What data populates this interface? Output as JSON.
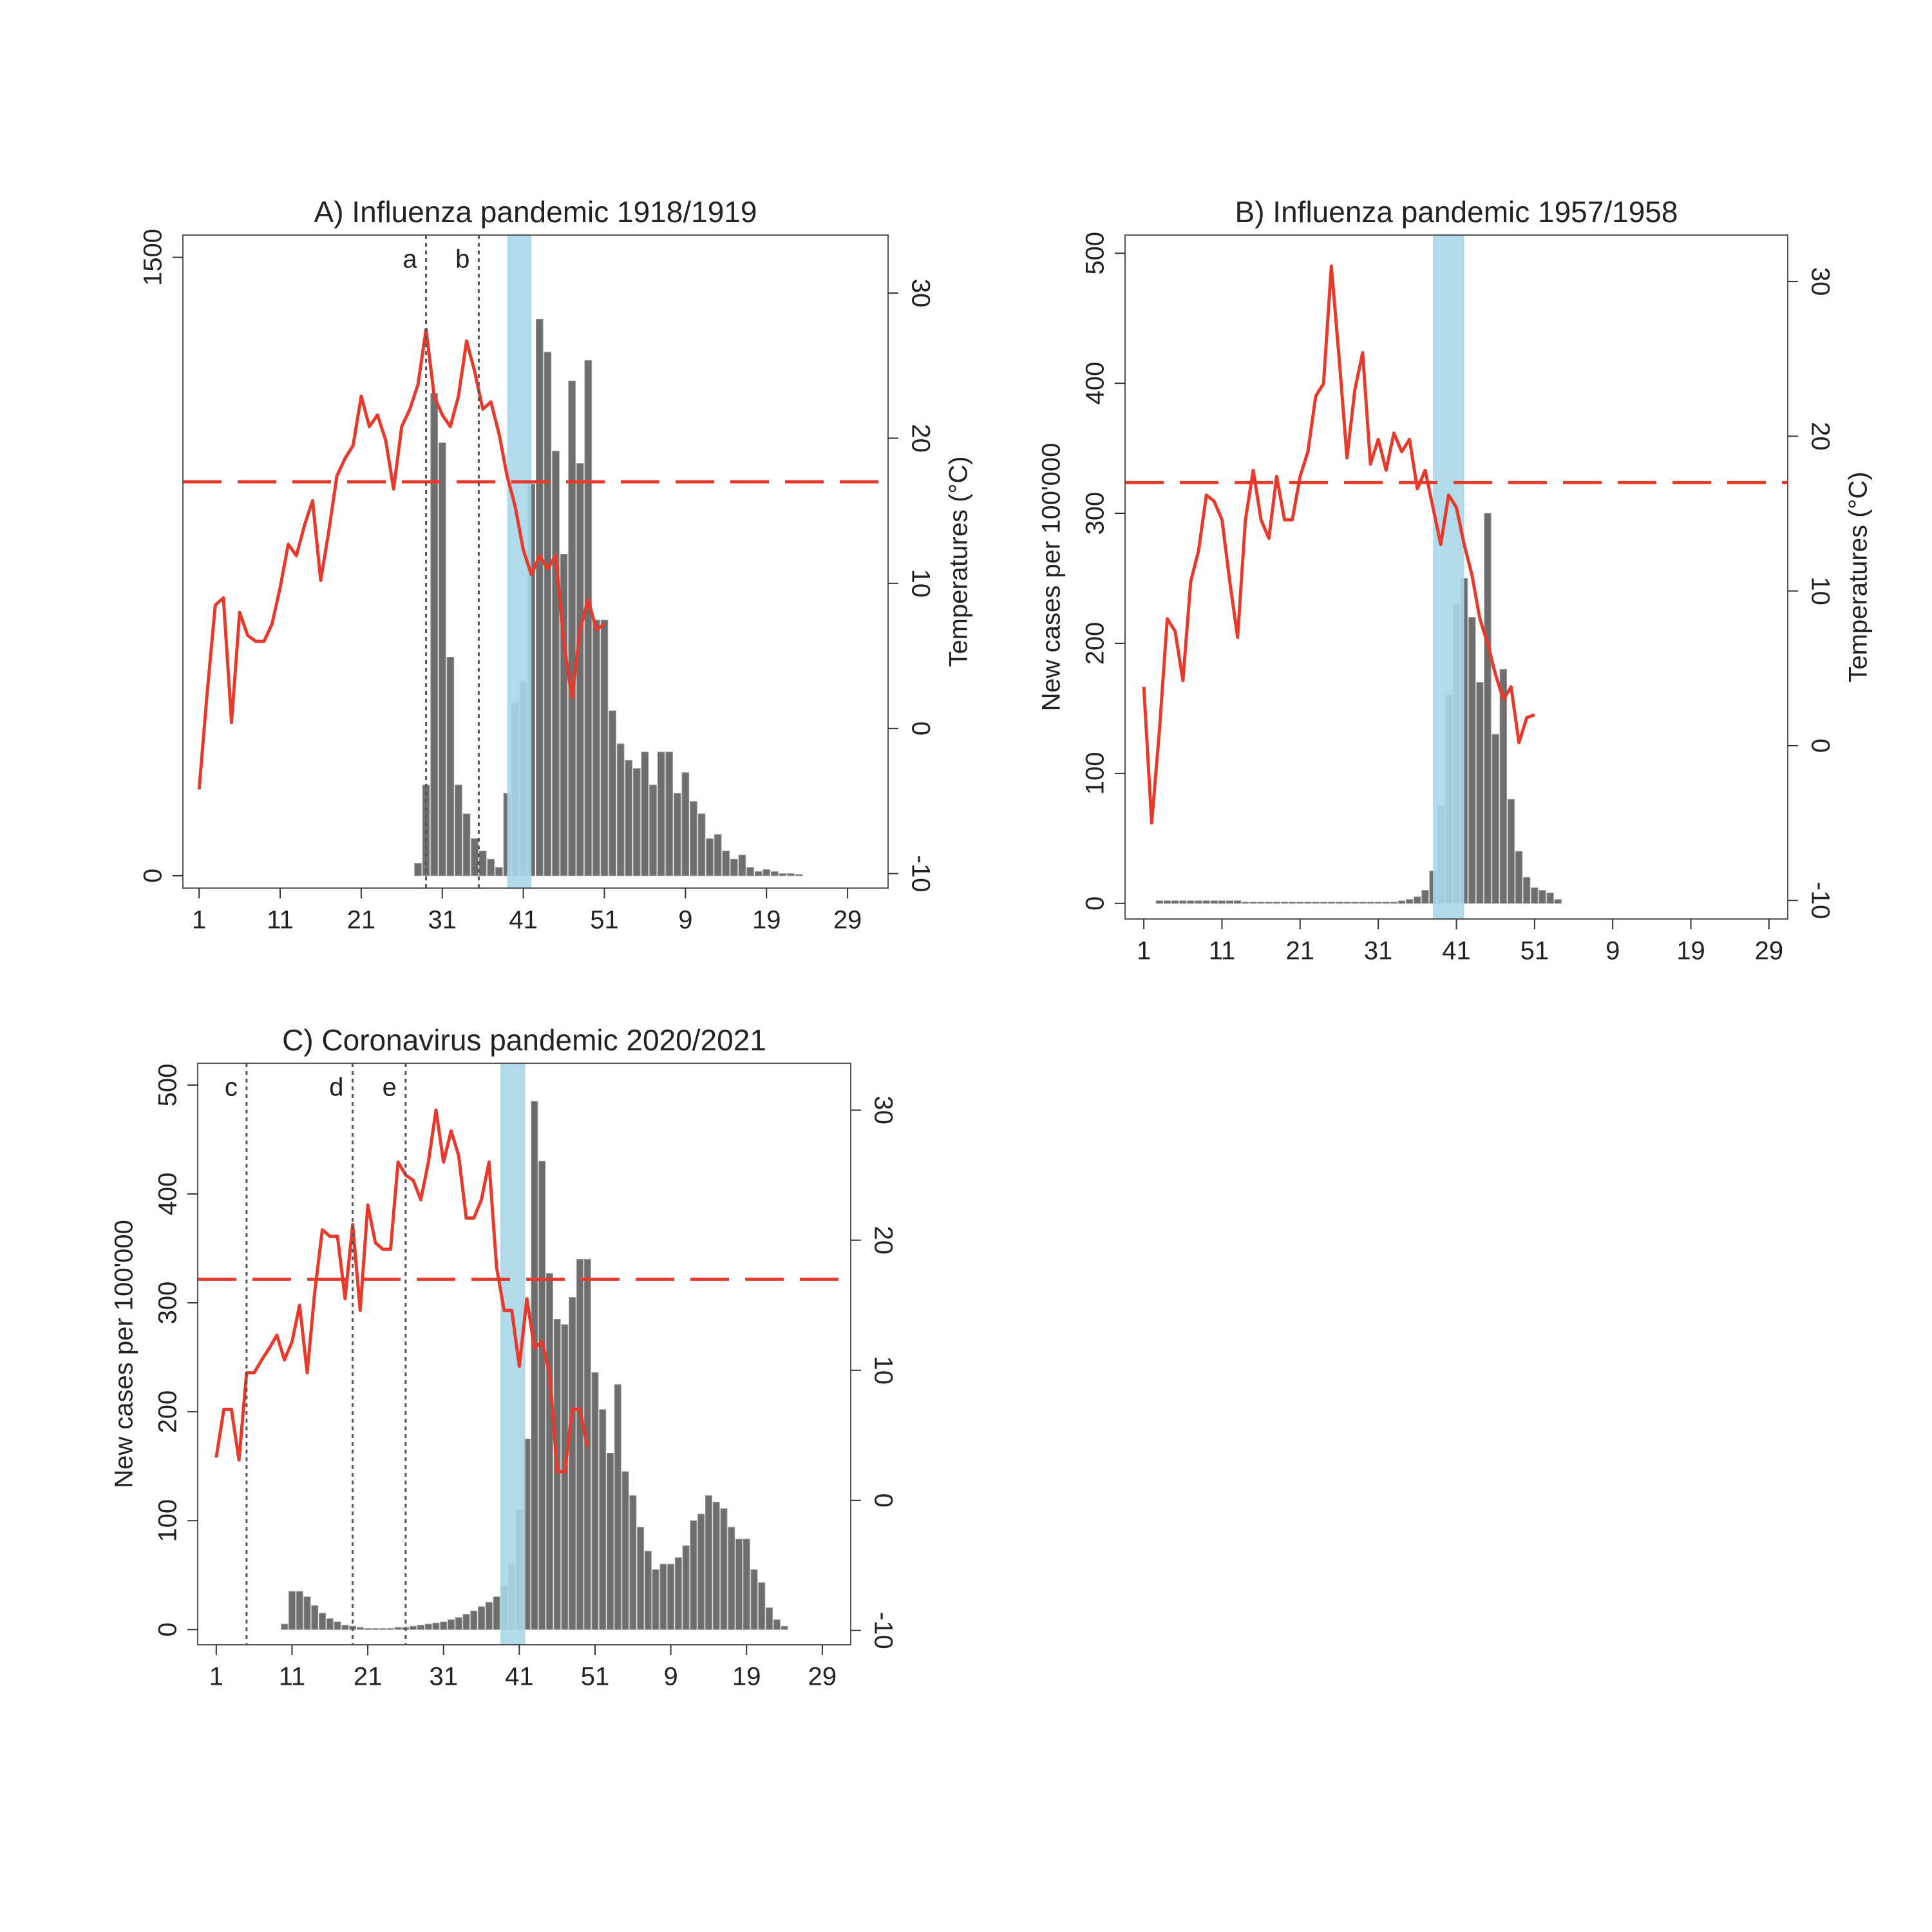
{
  "chart_data": [
    {
      "type": "bar",
      "title": "A) Influenza pandemic 1918/1919",
      "y2label": "Temperatures (°C)",
      "xlim": [
        -1,
        86
      ],
      "ylim": [
        -30,
        1554
      ],
      "y2lim": [
        -11,
        34
      ],
      "xticks": [
        1,
        11,
        21,
        31,
        41,
        51,
        {
          "value": 61,
          "label": "9"
        },
        {
          "value": 71,
          "label": "19"
        },
        {
          "value": 81,
          "label": "29"
        }
      ],
      "yticks": [
        0,
        1500
      ],
      "y2ticks": [
        -10,
        0,
        10,
        20,
        30
      ],
      "shaded_x": [
        39,
        42
      ],
      "shade_color": "#a9d6e8",
      "hline_y2": 17,
      "hline_color": "#e8392b",
      "vlines": [
        {
          "x": 29,
          "label": "a"
        },
        {
          "x": 35.5,
          "label": "b"
        }
      ],
      "series": [
        {
          "type": "bar",
          "color": "#6e6e6e",
          "x": [
            28,
            29,
            30,
            31,
            32,
            33,
            34,
            35,
            36,
            37,
            38,
            39,
            40,
            41,
            42,
            43,
            44,
            45,
            46,
            47,
            48,
            49,
            50,
            51,
            52,
            53,
            54,
            55,
            56,
            57,
            58,
            59,
            60,
            61,
            62,
            63,
            64,
            65,
            66,
            67,
            68,
            69,
            70,
            71,
            72,
            73,
            74,
            75
          ],
          "values": [
            30,
            220,
            1170,
            1050,
            530,
            220,
            150,
            90,
            60,
            40,
            20,
            200,
            420,
            470,
            950,
            1350,
            1270,
            1030,
            780,
            1200,
            1000,
            1250,
            620,
            620,
            400,
            320,
            280,
            260,
            300,
            220,
            300,
            300,
            200,
            250,
            180,
            150,
            90,
            100,
            60,
            40,
            50,
            20,
            10,
            15,
            10,
            5,
            5,
            3
          ]
        },
        {
          "type": "line",
          "axis": "y2",
          "color": "#e8392b",
          "x": [
            1,
            2,
            3,
            4,
            5,
            6,
            7,
            8,
            9,
            10,
            11,
            12,
            13,
            14,
            15,
            16,
            17,
            18,
            19,
            20,
            21,
            22,
            23,
            24,
            25,
            26,
            27,
            28,
            29,
            30,
            31,
            32,
            33,
            34,
            35,
            36,
            37,
            38,
            39,
            40,
            41,
            42,
            43,
            44,
            45,
            46,
            47,
            48,
            49,
            50,
            51
          ],
          "values": [
            -4.2,
            2.5,
            8.5,
            9,
            0.4,
            8,
            6.4,
            6,
            6,
            7.2,
            9.7,
            12.7,
            11.9,
            14,
            15.7,
            10.2,
            13.6,
            17.4,
            18.6,
            19.5,
            22.9,
            20.8,
            21.6,
            19.9,
            16.5,
            20.8,
            22,
            23.7,
            27.5,
            22.9,
            21.6,
            20.8,
            22.9,
            26.7,
            24.6,
            22,
            22.5,
            20.3,
            17.4,
            15.3,
            12.3,
            10.6,
            11.9,
            11,
            11.9,
            5.9,
            2.1,
            6.8,
            8.9,
            6.8,
            7.2
          ]
        }
      ]
    },
    {
      "type": "bar",
      "title": "B) Influenza pandemic 1957/1958",
      "ylabel": "New cases per 100'000",
      "y2label": "Temperatures (°C)",
      "xlim": [
        -1.4,
        83.4
      ],
      "ylim": [
        -12,
        514
      ],
      "y2lim": [
        -11.2,
        33
      ],
      "xticks": [
        1,
        11,
        21,
        31,
        41,
        51,
        {
          "value": 61,
          "label": "9"
        },
        {
          "value": 71,
          "label": "19"
        },
        {
          "value": 81,
          "label": "29"
        }
      ],
      "yticks": [
        0,
        100,
        200,
        300,
        400,
        500
      ],
      "y2ticks": [
        -10,
        0,
        10,
        20,
        30
      ],
      "shaded_x": [
        38,
        42
      ],
      "shade_color": "#a9d6e8",
      "hline_y2": 17,
      "hline_color": "#e8392b",
      "series": [
        {
          "type": "bar",
          "color": "#6e6e6e",
          "x": [
            3,
            4,
            5,
            6,
            7,
            8,
            9,
            10,
            11,
            12,
            13,
            14,
            15,
            16,
            17,
            18,
            19,
            20,
            21,
            22,
            23,
            24,
            25,
            26,
            27,
            28,
            29,
            30,
            31,
            32,
            33,
            34,
            35,
            36,
            37,
            38,
            39,
            40,
            41,
            42,
            43,
            44,
            45,
            46,
            47,
            48,
            49,
            50,
            51,
            52,
            53,
            54
          ],
          "values": [
            2,
            2,
            2,
            2,
            2,
            2,
            2,
            2,
            2,
            2,
            2,
            1,
            1,
            1,
            1,
            1,
            1,
            1,
            1,
            1,
            1,
            1,
            1,
            1,
            1,
            1,
            1,
            1,
            1,
            1,
            1,
            2,
            3,
            5,
            10,
            25,
            75,
            160,
            230,
            250,
            220,
            170,
            300,
            130,
            180,
            80,
            40,
            20,
            12,
            10,
            8,
            3
          ]
        },
        {
          "type": "line",
          "axis": "y2",
          "color": "#e8392b",
          "x": [
            1,
            2,
            3,
            4,
            5,
            6,
            7,
            8,
            9,
            10,
            11,
            12,
            13,
            14,
            15,
            16,
            17,
            18,
            19,
            20,
            21,
            22,
            23,
            24,
            25,
            26,
            27,
            28,
            29,
            30,
            31,
            32,
            33,
            34,
            35,
            36,
            37,
            38,
            39,
            40,
            41,
            42,
            43,
            44,
            45,
            46,
            47,
            48,
            49,
            50,
            51
          ],
          "values": [
            3.8,
            -5,
            1,
            8.2,
            7.4,
            4.2,
            10.6,
            12.6,
            16.2,
            15.8,
            14.6,
            10.6,
            7,
            14.6,
            17.8,
            14.6,
            13.4,
            17.4,
            14.6,
            14.6,
            17.4,
            19,
            22.6,
            23.4,
            31,
            25,
            18.6,
            23,
            25.4,
            18.2,
            19.8,
            17.8,
            20.2,
            19,
            19.8,
            16.6,
            17.8,
            15.4,
            13,
            16.2,
            15.4,
            13,
            11,
            8.2,
            6.6,
            4.6,
            3,
            3.8,
            0.2,
            1.8,
            2
          ]
        }
      ]
    },
    {
      "type": "bar",
      "title": "C) Coronavirus pandemic 2020/2021",
      "ylabel": "New cases per 100'000",
      "xlim": [
        -1.45,
        84.75
      ],
      "ylim": [
        -14,
        520
      ],
      "y2lim": [
        -11.1,
        33.6
      ],
      "xticks": [
        1,
        11,
        21,
        31,
        41,
        51,
        {
          "value": 61,
          "label": "9"
        },
        {
          "value": 71,
          "label": "19"
        },
        {
          "value": 81,
          "label": "29"
        }
      ],
      "yticks": [
        0,
        100,
        200,
        300,
        400,
        500
      ],
      "y2ticks": [
        -10,
        0,
        10,
        20,
        30
      ],
      "shaded_x": [
        38.5,
        41.8
      ],
      "shade_color": "#a9d6e8",
      "hline_y2": 17,
      "hline_color": "#e8392b",
      "vlines": [
        {
          "x": 5,
          "label": "c"
        },
        {
          "x": 19,
          "label": "d"
        },
        {
          "x": 26,
          "label": "e"
        }
      ],
      "series": [
        {
          "type": "bar",
          "color": "#6e6e6e",
          "x": [
            10,
            11,
            12,
            13,
            14,
            15,
            16,
            17,
            18,
            19,
            20,
            21,
            22,
            23,
            24,
            25,
            26,
            27,
            28,
            29,
            30,
            31,
            32,
            33,
            34,
            35,
            36,
            37,
            38,
            39,
            40,
            41,
            42,
            43,
            44,
            45,
            46,
            47,
            48,
            49,
            50,
            51,
            52,
            53,
            54,
            55,
            56,
            57,
            58,
            59,
            60,
            61,
            62,
            63,
            64,
            65,
            66,
            67,
            68,
            69,
            70,
            71,
            72,
            73,
            74,
            75,
            76
          ],
          "values": [
            5,
            35,
            35,
            30,
            22,
            15,
            10,
            7,
            4,
            3,
            2,
            1,
            1,
            1,
            1,
            2,
            2,
            3,
            4,
            5,
            6,
            7,
            9,
            11,
            14,
            17,
            21,
            25,
            30,
            40,
            60,
            110,
            175,
            485,
            430,
            327,
            285,
            280,
            305,
            340,
            340,
            236,
            202,
            162,
            225,
            145,
            123,
            94,
            72,
            55,
            60,
            60,
            66,
            77,
            100,
            106,
            123,
            117,
            111,
            94,
            83,
            83,
            55,
            43,
            20,
            9,
            3
          ]
        },
        {
          "type": "line",
          "axis": "y2",
          "color": "#e8392b",
          "x": [
            1,
            2,
            3,
            4,
            5,
            6,
            7,
            8,
            9,
            10,
            11,
            12,
            13,
            14,
            15,
            16,
            17,
            18,
            19,
            20,
            21,
            22,
            23,
            24,
            25,
            26,
            27,
            28,
            29,
            30,
            31,
            32,
            33,
            34,
            35,
            36,
            37,
            38,
            39,
            40,
            41,
            42,
            43,
            44,
            45,
            46,
            47,
            48,
            49,
            50
          ],
          "values": [
            3.3,
            7,
            7,
            3.1,
            9.8,
            9.8,
            10.8,
            11.7,
            12.7,
            10.8,
            12.2,
            15,
            9.8,
            16,
            20.8,
            20.3,
            20.3,
            15.5,
            21.2,
            14.6,
            22.7,
            19.8,
            19.3,
            19.3,
            26,
            25,
            24.6,
            23.1,
            26,
            30,
            26,
            28.4,
            26.5,
            21.7,
            21.7,
            23.1,
            26,
            17.9,
            14.6,
            14.6,
            10.3,
            15.5,
            11.7,
            12.2,
            9.8,
            2.2,
            2.2,
            7,
            7,
            4.1
          ]
        }
      ]
    }
  ]
}
